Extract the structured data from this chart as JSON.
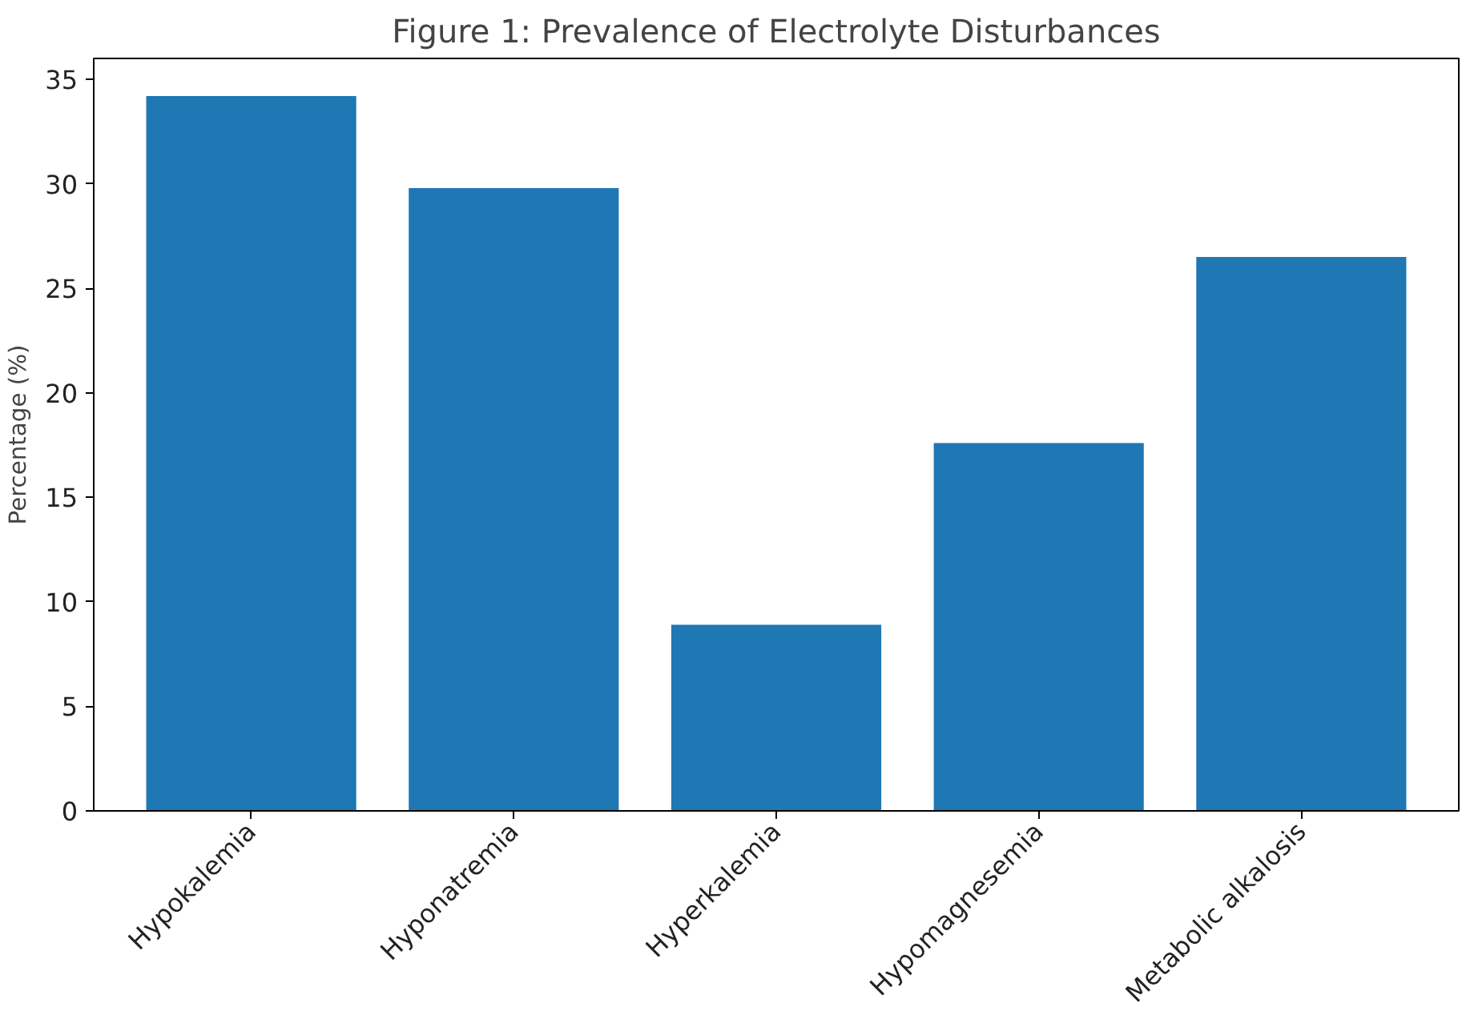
{
  "chart_data": {
    "type": "bar",
    "title": "Figure 1: Prevalence of Electrolyte Disturbances",
    "ylabel": "Percentage (%)",
    "categories": [
      "Hypokalemia",
      "Hyponatremia",
      "Hyperkalemia",
      "Hypomagnesemia",
      "Metabolic alkalosis"
    ],
    "values": [
      34.2,
      29.8,
      8.9,
      17.6,
      26.5
    ],
    "color": "#1f77b4",
    "ylim": [
      0,
      36
    ],
    "yticks": [
      0,
      5,
      10,
      15,
      20,
      25,
      30,
      35
    ],
    "grid": false
  }
}
